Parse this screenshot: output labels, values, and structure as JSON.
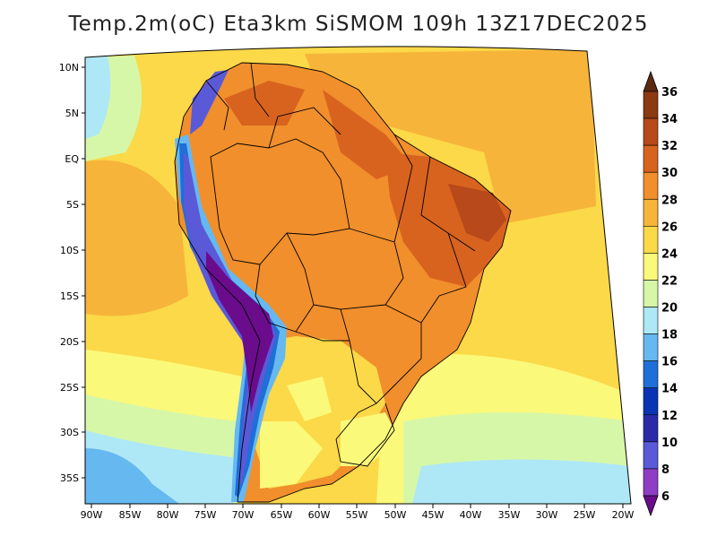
{
  "title": "Temp.2m(oC) Eta3km SiSMOM 109h 13Z17DEC2025",
  "map": {
    "region": "South America",
    "lat_labels": [
      "10N",
      "5N",
      "EQ",
      "5S",
      "10S",
      "15S",
      "20S",
      "25S",
      "30S",
      "35S"
    ],
    "lon_labels": [
      "90W",
      "85W",
      "80W",
      "75W",
      "70W",
      "65W",
      "60W",
      "55W",
      "50W",
      "45W",
      "40W",
      "35W",
      "30W",
      "25W",
      "20W"
    ]
  },
  "colorbar": {
    "labels": [
      "36",
      "34",
      "32",
      "30",
      "28",
      "26",
      "24",
      "22",
      "20",
      "18",
      "16",
      "14",
      "12",
      "10",
      "8",
      "6"
    ],
    "colors": [
      "#5c2a12",
      "#8b3a12",
      "#b7491a",
      "#d8631e",
      "#f08f2c",
      "#f7b43a",
      "#fbd948",
      "#fbf97a",
      "#d7f7a8",
      "#aee8f6",
      "#66b8f0",
      "#1f6fd8",
      "#0b34b4",
      "#2a2aa8",
      "#5a5ad8",
      "#8e3ec4",
      "#6a0c8c"
    ]
  }
}
